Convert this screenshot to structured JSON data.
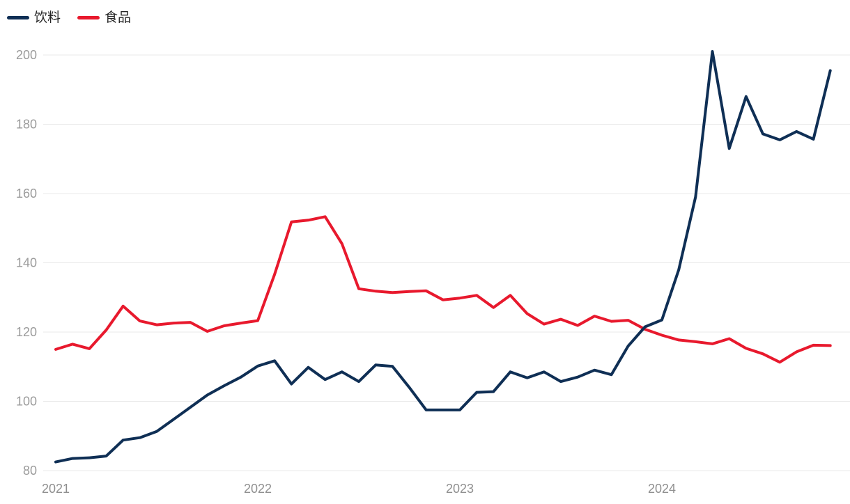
{
  "legend": {
    "items": [
      {
        "label": "饮料",
        "key": "beverages",
        "color": "#0f2f55"
      },
      {
        "label": "食品",
        "key": "food",
        "color": "#e8192d"
      }
    ]
  },
  "colors": {
    "beverages_line": "#0f2f55",
    "food_line": "#e8192d",
    "gridline": "#e9e9e9",
    "y_tick_label": "#9b9b9b",
    "x_tick_label": "#8f8f8f",
    "background": "#ffffff"
  },
  "chart_data": {
    "type": "line",
    "title": "",
    "xlabel": "",
    "ylabel": "",
    "grid": "horizontal-only",
    "legend_position": "top-left",
    "x_tick_labels": [
      "2021",
      "2022",
      "2023",
      "2024"
    ],
    "y_axis": {
      "ticks": [
        80,
        100,
        120,
        140,
        160,
        180,
        200
      ],
      "range": [
        80,
        202
      ]
    },
    "x": [
      "2021-01",
      "2021-02",
      "2021-03",
      "2021-04",
      "2021-05",
      "2021-06",
      "2021-07",
      "2021-08",
      "2021-09",
      "2021-10",
      "2021-11",
      "2021-12",
      "2022-01",
      "2022-02",
      "2022-03",
      "2022-04",
      "2022-05",
      "2022-06",
      "2022-07",
      "2022-08",
      "2022-09",
      "2022-10",
      "2022-11",
      "2022-12",
      "2023-01",
      "2023-02",
      "2023-03",
      "2023-04",
      "2023-05",
      "2023-06",
      "2023-07",
      "2023-08",
      "2023-09",
      "2023-10",
      "2023-11",
      "2023-12",
      "2024-01",
      "2024-02",
      "2024-03",
      "2024-04",
      "2024-05",
      "2024-06",
      "2024-07",
      "2024-08",
      "2024-09",
      "2024-10",
      "2024-11"
    ],
    "series": [
      {
        "name": "饮料",
        "key": "beverages",
        "color": "#0f2f55",
        "values": [
          82.5,
          83.5,
          83.7,
          84.2,
          88.8,
          89.5,
          91.3,
          94.8,
          98.3,
          101.8,
          104.5,
          107.0,
          110.2,
          111.7,
          105.0,
          109.8,
          106.3,
          108.5,
          105.7,
          110.5,
          110.1,
          104.0,
          97.5,
          97.5,
          97.5,
          102.6,
          102.8,
          108.5,
          106.8,
          108.5,
          105.7,
          107.0,
          109.0,
          107.7,
          116.0,
          121.5,
          123.5,
          138.0,
          159.0,
          201.0,
          173.0,
          188.0,
          177.2,
          175.5,
          177.9,
          175.7,
          195.5
        ]
      },
      {
        "name": "食品",
        "key": "food",
        "color": "#e8192d",
        "values": [
          115.0,
          116.5,
          115.2,
          120.6,
          127.5,
          123.2,
          122.1,
          122.6,
          122.8,
          120.2,
          121.8,
          122.6,
          123.3,
          136.7,
          151.8,
          152.3,
          153.3,
          145.5,
          132.5,
          131.8,
          131.4,
          131.7,
          131.9,
          129.3,
          129.8,
          130.6,
          127.1,
          130.6,
          125.3,
          122.3,
          123.7,
          121.9,
          124.6,
          123.1,
          123.4,
          120.8,
          119.1,
          117.7,
          117.2,
          116.6,
          118.1,
          115.3,
          113.7,
          111.3,
          114.3,
          116.2,
          116.1
        ]
      }
    ]
  }
}
